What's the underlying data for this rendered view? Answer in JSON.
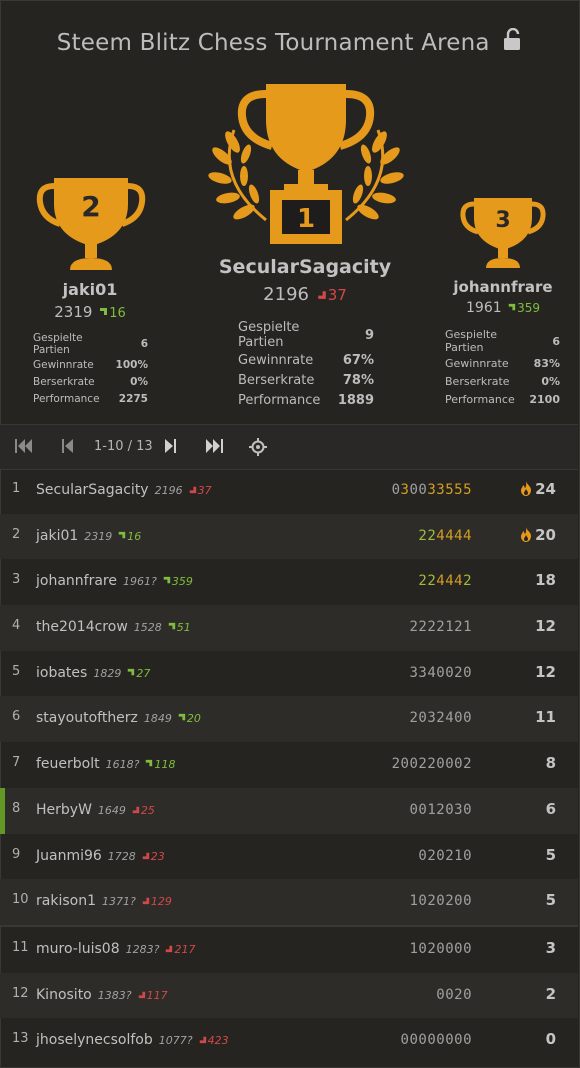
{
  "header": {
    "title": "Steem Blitz Chess Tournament Arena"
  },
  "podium": {
    "first": {
      "rank": "1",
      "name": "SecularSagacity",
      "rating": "2196",
      "diff": "37",
      "dir": "down",
      "stats": [
        {
          "label": "Gespielte Partien",
          "value": "9"
        },
        {
          "label": "Gewinnrate",
          "value": "67%"
        },
        {
          "label": "Berserkrate",
          "value": "78%"
        },
        {
          "label": "Performance",
          "value": "1889"
        }
      ]
    },
    "second": {
      "rank": "2",
      "name": "jaki01",
      "rating": "2319",
      "diff": "16",
      "dir": "up",
      "stats": [
        {
          "label": "Gespielte Partien",
          "value": "6"
        },
        {
          "label": "Gewinnrate",
          "value": "100%"
        },
        {
          "label": "Berserkrate",
          "value": "0%"
        },
        {
          "label": "Performance",
          "value": "2275"
        }
      ]
    },
    "third": {
      "rank": "3",
      "name": "johannfrare",
      "rating": "1961",
      "diff": "359",
      "dir": "up",
      "stats": [
        {
          "label": "Gespielte Partien",
          "value": "6"
        },
        {
          "label": "Gewinnrate",
          "value": "83%"
        },
        {
          "label": "Berserkrate",
          "value": "0%"
        },
        {
          "label": "Performance",
          "value": "2100"
        }
      ]
    }
  },
  "pager": {
    "page_label": "1-10 / 13"
  },
  "standings": [
    {
      "rank": "1",
      "name": "SecularSagacity",
      "rating": "2196",
      "diff": "37",
      "dir": "down",
      "sheet": "030033555",
      "total": "24",
      "fire": true
    },
    {
      "rank": "2",
      "name": "jaki01",
      "rating": "2319",
      "diff": "16",
      "dir": "up",
      "sheet": "224444",
      "total": "20",
      "fire": true
    },
    {
      "rank": "3",
      "name": "johannfrare",
      "rating": "1961?",
      "diff": "359",
      "dir": "up",
      "sheet": "224442",
      "total": "18",
      "fire": false
    },
    {
      "rank": "4",
      "name": "the2014crow",
      "rating": "1528",
      "diff": "51",
      "dir": "up",
      "sheet": "2222121",
      "total": "12",
      "fire": false
    },
    {
      "rank": "5",
      "name": "iobates",
      "rating": "1829",
      "diff": "27",
      "dir": "up",
      "sheet": "3340020",
      "total": "12",
      "fire": false
    },
    {
      "rank": "6",
      "name": "stayoutoftherz",
      "rating": "1849",
      "diff": "20",
      "dir": "up",
      "sheet": "2032400",
      "total": "11",
      "fire": false
    },
    {
      "rank": "7",
      "name": "feuerbolt",
      "rating": "1618?",
      "diff": "118",
      "dir": "up",
      "sheet": "200220002",
      "total": "8",
      "fire": false
    },
    {
      "rank": "8",
      "name": "HerbyW",
      "rating": "1649",
      "diff": "25",
      "dir": "down",
      "sheet": "0012030",
      "total": "6",
      "fire": false
    },
    {
      "rank": "9",
      "name": "Juanmi96",
      "rating": "1728",
      "diff": "23",
      "dir": "down",
      "sheet": "020210",
      "total": "5",
      "fire": false
    },
    {
      "rank": "10",
      "name": "rakison1",
      "rating": "1371?",
      "diff": "129",
      "dir": "down",
      "sheet": "1020200",
      "total": "5",
      "fire": false
    },
    {
      "rank": "11",
      "name": "muro-luis08",
      "rating": "1283?",
      "diff": "217",
      "dir": "down",
      "sheet": "1020000",
      "total": "3",
      "fire": false
    },
    {
      "rank": "12",
      "name": "Kinosito",
      "rating": "1383?",
      "diff": "117",
      "dir": "down",
      "sheet": "0020",
      "total": "2",
      "fire": false
    },
    {
      "rank": "13",
      "name": "jhoselynecsolfob",
      "rating": "1077?",
      "diff": "423",
      "dir": "down",
      "sheet": "00000000",
      "total": "0",
      "fire": false
    }
  ],
  "colors": {
    "trophy": "#e69a1c",
    "up": "#7fbd3c",
    "down": "#d14848",
    "highlight": "#629924"
  }
}
